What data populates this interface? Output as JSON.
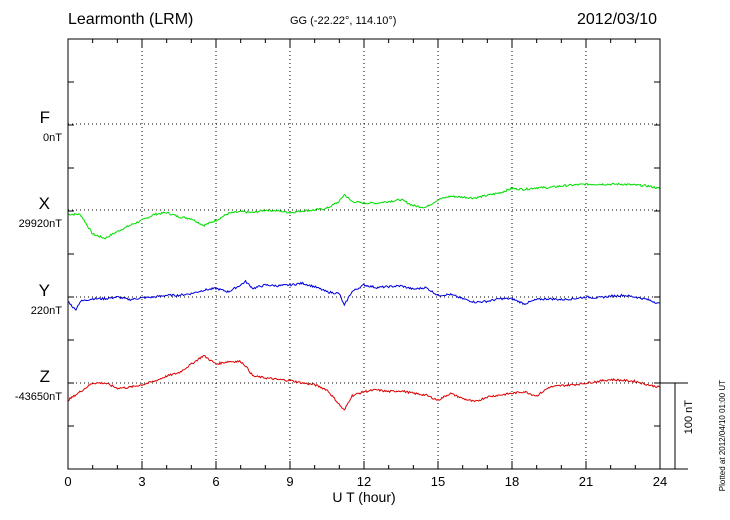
{
  "header": {
    "station": "Learmonth (LRM)",
    "coords": "GG (-22.22°, 114.10°)",
    "date": "2012/03/10"
  },
  "footer": {
    "plotted": "Plotted at 2012/04/10 01:00 UT"
  },
  "scale": {
    "label": "100 nT"
  },
  "chart_data": {
    "type": "line",
    "title": "Learmonth (LRM)",
    "xlabel": "U T (hour)",
    "xlim": [
      0,
      24
    ],
    "xticks": [
      "0",
      "3",
      "6",
      "9",
      "12",
      "15",
      "18",
      "21",
      "24"
    ],
    "grid": true,
    "scale_bar_nT": 100,
    "series": [
      {
        "name": "F",
        "baseline_label": "0nT",
        "color": "#ffa500",
        "x": [],
        "values": []
      },
      {
        "name": "X",
        "baseline_label": "29920nT",
        "color": "#00dd00",
        "x": [
          0,
          0.5,
          1,
          1.5,
          2,
          2.5,
          3,
          3.5,
          4,
          4.5,
          5,
          5.5,
          6,
          6.5,
          7,
          7.5,
          8,
          8.5,
          9,
          9.5,
          10,
          10.5,
          11,
          11.2,
          11.5,
          12,
          12.5,
          13,
          13.5,
          14,
          14.5,
          15,
          15.5,
          16,
          16.5,
          17,
          17.5,
          18,
          18.5,
          19,
          19.5,
          20,
          20.5,
          21,
          21.5,
          22,
          22.5,
          23,
          23.5,
          24
        ],
        "values": [
          -5,
          -5,
          -28,
          -33,
          -25,
          -18,
          -12,
          -5,
          -3,
          -8,
          -10,
          -18,
          -12,
          -4,
          -2,
          -3,
          0,
          -1,
          -3,
          -1,
          0,
          2,
          10,
          18,
          10,
          8,
          8,
          10,
          12,
          5,
          3,
          12,
          16,
          15,
          14,
          17,
          20,
          25,
          24,
          26,
          26,
          28,
          29,
          30,
          30,
          30,
          30,
          29,
          28,
          25
        ]
      },
      {
        "name": "Y",
        "baseline_label": "220nT",
        "color": "#0000dd",
        "x": [
          0,
          0.3,
          0.5,
          1,
          1.5,
          2,
          2.5,
          3,
          3.5,
          4,
          4.5,
          5,
          5.5,
          6,
          6.5,
          7,
          7.2,
          7.5,
          8,
          8.5,
          9,
          9.5,
          10,
          10.5,
          11,
          11.2,
          11.5,
          12,
          12.5,
          13,
          13.5,
          14,
          14.5,
          15,
          15.5,
          16,
          16.5,
          17,
          17.5,
          18,
          18.5,
          19,
          19.5,
          20,
          20.5,
          21,
          21.5,
          22,
          22.5,
          23,
          23.5,
          24
        ],
        "values": [
          -5,
          -15,
          -5,
          -2,
          -2,
          0,
          -3,
          -1,
          0,
          2,
          2,
          4,
          8,
          10,
          6,
          14,
          18,
          10,
          14,
          13,
          14,
          16,
          12,
          6,
          4,
          -10,
          6,
          14,
          11,
          12,
          13,
          9,
          11,
          2,
          3,
          -2,
          -6,
          -5,
          -2,
          -2,
          -8,
          -3,
          -2,
          -3,
          -2,
          0,
          -1,
          1,
          2,
          0,
          -3,
          -8
        ]
      },
      {
        "name": "Z",
        "baseline_label": "-43650nT",
        "color": "#dd0000",
        "x": [
          0,
          0.5,
          1,
          1.5,
          2,
          2.5,
          3,
          3.5,
          4,
          4.5,
          5,
          5.5,
          6,
          6.5,
          7,
          7.2,
          7.5,
          8,
          8.5,
          9,
          9.5,
          10,
          10.5,
          11,
          11.2,
          11.5,
          12,
          12.5,
          13,
          13.5,
          14,
          14.5,
          15,
          15.5,
          16,
          16.5,
          17,
          17.5,
          18,
          18.5,
          19,
          19.5,
          20,
          20.5,
          21,
          21.5,
          22,
          22.5,
          23,
          23.5,
          24
        ],
        "values": [
          -20,
          -10,
          0,
          0,
          -6,
          -5,
          -2,
          2,
          8,
          12,
          22,
          32,
          22,
          25,
          25,
          20,
          8,
          6,
          4,
          3,
          0,
          -2,
          -8,
          -25,
          -32,
          -15,
          -10,
          -8,
          -10,
          -9,
          -12,
          -14,
          -20,
          -12,
          -18,
          -22,
          -16,
          -14,
          -12,
          -10,
          -15,
          -5,
          -3,
          -2,
          0,
          2,
          4,
          3,
          2,
          -2,
          -5
        ]
      }
    ]
  }
}
